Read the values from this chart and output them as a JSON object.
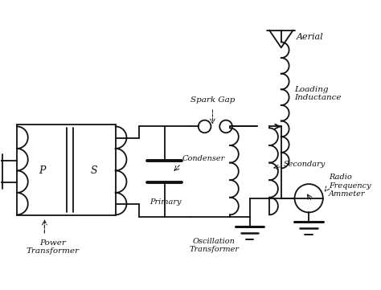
{
  "background_color": "#ffffff",
  "line_color": "#111111",
  "text_color": "#111111",
  "figsize": [
    4.74,
    3.61
  ],
  "dpi": 100,
  "labels": {
    "aerial": "Aerial",
    "loading_inductance": "Loading\nInductance",
    "spark_gap": "Spark Gap",
    "condenser": "Condenser",
    "primary": "Primary",
    "secondary": "Secondary",
    "power_transformer": "Power\nTransformer",
    "oscillation_transformer": "Oscillation\nTransformer",
    "radio_frequency_ammeter": "Radio\nFrequency\nAmmeter",
    "P": "P",
    "S": "S"
  }
}
